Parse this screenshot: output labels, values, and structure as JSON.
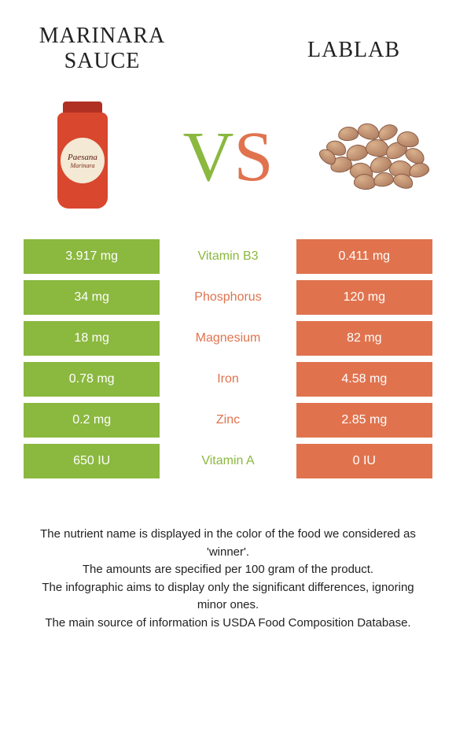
{
  "header": {
    "left_title": "MARINARA SAUCE",
    "right_title": "LABLAB",
    "vs_v": "V",
    "vs_s": "S",
    "jar_brand": "Paesana",
    "jar_sub": "Marinara"
  },
  "colors": {
    "left_bg": "#8bb83f",
    "right_bg": "#e0734e",
    "left_text": "#8bb83f",
    "right_text": "#e0734e",
    "body_bg": "#ffffff"
  },
  "rows": [
    {
      "left": "3.917 mg",
      "label": "Vitamin B3",
      "right": "0.411 mg",
      "winner": "left"
    },
    {
      "left": "34 mg",
      "label": "Phosphorus",
      "right": "120 mg",
      "winner": "right"
    },
    {
      "left": "18 mg",
      "label": "Magnesium",
      "right": "82 mg",
      "winner": "right"
    },
    {
      "left": "0.78 mg",
      "label": "Iron",
      "right": "4.58 mg",
      "winner": "right"
    },
    {
      "left": "0.2 mg",
      "label": "Zinc",
      "right": "2.85 mg",
      "winner": "right"
    },
    {
      "left": "650 IU",
      "label": "Vitamin A",
      "right": "0 IU",
      "winner": "left"
    }
  ],
  "footer": {
    "l1": "The nutrient name is displayed in the color of the food we considered as 'winner'.",
    "l2": "The amounts are specified per 100 gram of the product.",
    "l3": "The infographic aims to display only the significant differences, ignoring minor ones.",
    "l4": "The main source of information is USDA Food Composition Database."
  },
  "fontsize": {
    "title": 28,
    "vs": 90,
    "cell": 16,
    "footer": 15
  }
}
